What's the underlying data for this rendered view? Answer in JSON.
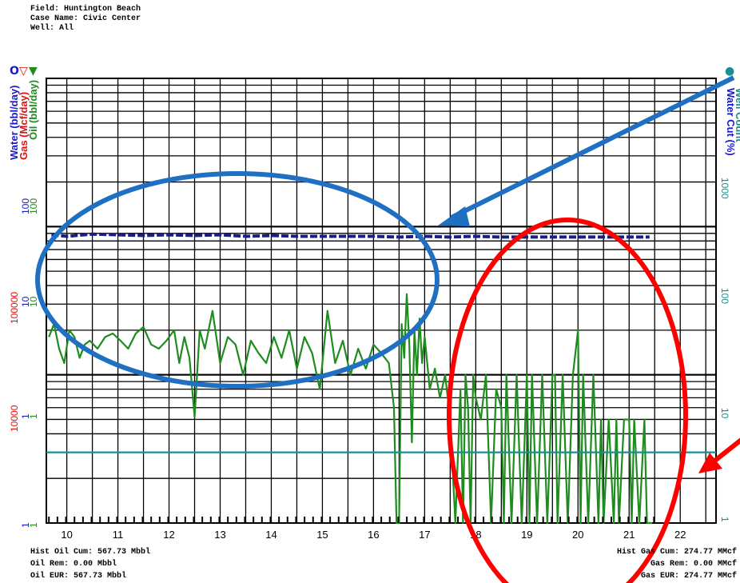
{
  "header": {
    "field": "Field: Huntington Beach",
    "case_name": "Case Name: Civic Center",
    "well": "Well: All"
  },
  "legend_symbols": {
    "water": "O",
    "gas": "▽",
    "oil": "▼",
    "wellcount": "●"
  },
  "colors": {
    "water": "#1a1ac8",
    "gas": "#e01010",
    "oil": "#1e8c1e",
    "well_count": "#1a8f8f",
    "water_series": "#1c1c84",
    "annotation_blue": "#1f6fc2",
    "annotation_red": "#ff0000",
    "left_tick_red": "#e01010",
    "left_tick_green": "#1e8c1e",
    "left_tick_blue": "#1a1ac8",
    "right_tick": "#1a8f8f"
  },
  "footer": {
    "left": [
      "Hist Oil Cum: 567.73 Mbbl",
      "Oil Rem: 0.00 Mbbl",
      "Oil EUR: 567.73 Mbbl"
    ],
    "right": [
      "Hist Gas Cum: 274.77 MMcf",
      "Gas Rem: 0.00 MMcf",
      "Gas EUR: 274.77 MMcf"
    ]
  },
  "chart_data": {
    "type": "line",
    "y_scale": "log",
    "grid": true,
    "xlim": [
      9.6,
      22.7
    ],
    "ylim": [
      1,
      1000
    ],
    "x_ticks": [
      "10",
      "11",
      "12",
      "13",
      "14",
      "15",
      "16",
      "17",
      "18",
      "19",
      "20",
      "21",
      "22"
    ],
    "left_axis_labels": [
      {
        "text": "Water (bbl/day)",
        "color_key": "water"
      },
      {
        "text": "Gas (Mcf/day)",
        "color_key": "gas"
      },
      {
        "text": "Oil (bbl/day)",
        "color_key": "oil"
      }
    ],
    "right_axis_labels": [
      {
        "text": "Water Cut (%)",
        "color_key": "water"
      },
      {
        "text": "Well Count",
        "color_key": "well_count"
      }
    ],
    "left_ticks_red": [
      "100000",
      "10000"
    ],
    "left_ticks_green": [
      "100",
      "10",
      "1",
      "1"
    ],
    "left_ticks_blue": [
      "100",
      "10",
      "1",
      "1"
    ],
    "right_ticks": [
      "1000",
      "100",
      "10",
      "1"
    ],
    "series": [
      {
        "color_key": "water_series",
        "x": [
          9.7,
          10.0,
          10.5,
          11.0,
          11.5,
          12.0,
          12.5,
          13.0,
          13.5,
          14.0,
          14.5,
          15.0,
          15.5,
          16.0,
          16.5,
          17.0,
          17.5,
          18.0,
          18.5,
          19.0,
          19.5,
          20.0,
          20.5,
          21.0,
          21.4
        ],
        "y": [
          88,
          86,
          89,
          88,
          87,
          88,
          87,
          88,
          86,
          87,
          86,
          86,
          86,
          86,
          85,
          86,
          85,
          86,
          85,
          85,
          85,
          85,
          85,
          85,
          85
        ]
      },
      {
        "color_key": "oil",
        "x": [
          9.65,
          9.75,
          9.85,
          9.95,
          10.05,
          10.15,
          10.25,
          10.35,
          10.45,
          10.6,
          10.75,
          10.9,
          11.05,
          11.2,
          11.35,
          11.5,
          11.65,
          11.8,
          11.95,
          12.1,
          12.2,
          12.3,
          12.4,
          12.5,
          12.6,
          12.7,
          12.85,
          13.0,
          13.15,
          13.3,
          13.45,
          13.6,
          13.75,
          13.9,
          14.05,
          14.2,
          14.35,
          14.5,
          14.65,
          14.8,
          14.95,
          15.1,
          15.25,
          15.4,
          15.55,
          15.7,
          15.85,
          16.0,
          16.15,
          16.3,
          16.4,
          16.45,
          16.5,
          16.55,
          16.6,
          16.65,
          16.7,
          16.75,
          16.8,
          16.85,
          16.9,
          16.95,
          17.0,
          17.1,
          17.2,
          17.3,
          17.4,
          17.5,
          17.6,
          17.7,
          17.75,
          17.8,
          17.85,
          17.9,
          17.95,
          18.0,
          18.1,
          18.2,
          18.3,
          18.4,
          18.5,
          18.55,
          18.6,
          18.7,
          18.8,
          18.9,
          19.0,
          19.05,
          19.1,
          19.2,
          19.3,
          19.4,
          19.5,
          19.55,
          19.6,
          19.7,
          19.8,
          19.9,
          20.0,
          20.05,
          20.1,
          20.2,
          20.3,
          20.4,
          20.45,
          20.5,
          20.6,
          20.7,
          20.75,
          20.8,
          20.9,
          21.0,
          21.05,
          21.1,
          21.2,
          21.3,
          21.35,
          21.4,
          21.45
        ],
        "y": [
          18,
          22,
          15,
          12,
          20,
          18,
          13,
          16,
          17,
          15,
          18,
          19,
          17,
          15,
          19,
          21,
          16,
          15,
          17,
          20,
          12,
          18,
          13,
          5.2,
          20,
          15,
          27,
          12,
          18,
          16,
          10,
          17,
          14,
          12,
          18,
          13,
          20,
          11,
          18,
          14,
          8,
          27,
          12,
          17,
          10,
          15,
          11,
          16,
          14,
          12,
          6,
          1,
          1,
          22,
          13,
          35,
          16,
          3.5,
          20,
          10,
          24,
          12,
          18,
          8,
          11,
          7,
          10,
          5,
          1,
          8,
          1,
          10,
          6,
          1,
          10,
          7,
          5,
          10,
          1,
          8,
          6,
          1,
          10,
          1,
          10,
          1,
          10,
          1,
          10,
          1,
          10,
          1,
          10,
          10,
          1,
          10,
          1,
          10,
          20,
          1,
          10,
          1,
          10,
          1,
          5,
          1,
          5,
          1,
          5,
          1,
          5,
          5,
          1,
          5,
          1,
          5,
          1,
          1,
          1
        ]
      },
      {
        "color_key": "well_count",
        "x": [
          9.6,
          22.7
        ],
        "y": [
          3,
          3
        ]
      }
    ]
  }
}
